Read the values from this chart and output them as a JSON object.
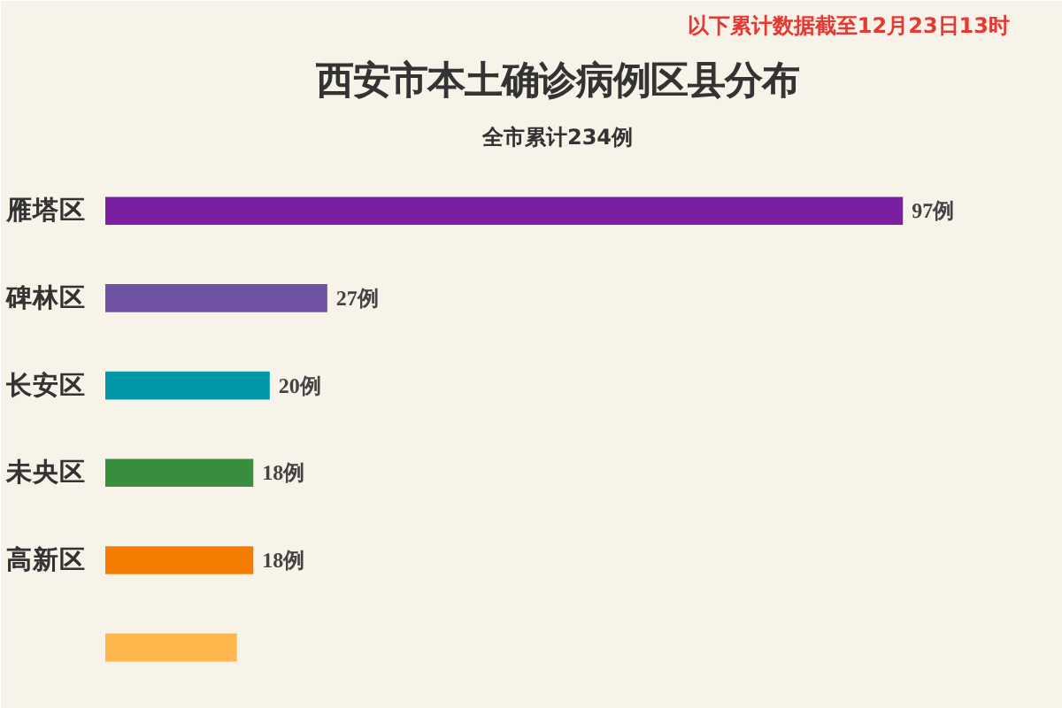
{
  "chart_data": {
    "type": "bar",
    "orientation": "horizontal",
    "title": "西安市本土确诊病例区县分布",
    "subtitle": "全市累计234例",
    "annotations": [
      "以下累计数据截至12月23日13时"
    ],
    "categories": [
      "雁塔区",
      "碑林区",
      "长安区",
      "未央区",
      "高新区",
      null
    ],
    "values": [
      97,
      27,
      20,
      18,
      18,
      16
    ],
    "value_labels": [
      "97例",
      "27例",
      "20例",
      "18例",
      "18例",
      null
    ],
    "colors": [
      "#7b1fa2",
      "#6f52a3",
      "#0097a7",
      "#388e3c",
      "#f57c00",
      "#ffb74d"
    ],
    "xlim": [
      0,
      110
    ],
    "tick_labels": "y",
    "grid": false
  }
}
